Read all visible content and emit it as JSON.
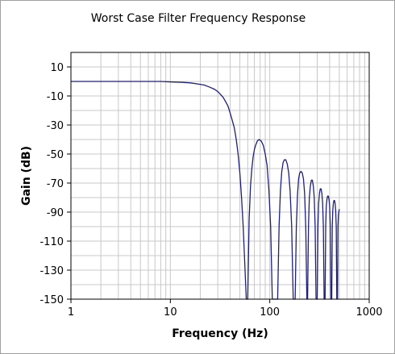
{
  "chart_data": {
    "type": "line",
    "title": "Worst Case Filter Frequency Response",
    "xlabel": "Frequency (Hz)",
    "ylabel": "Gain (dB)",
    "x_scale": "log",
    "xlim": [
      1,
      1000
    ],
    "ylim": [
      -150,
      20
    ],
    "x_ticks": [
      "1",
      "10",
      "100",
      "1000"
    ],
    "y_ticks": [
      "10",
      "-10",
      "-30",
      "-50",
      "-70",
      "-90",
      "-110",
      "-130",
      "-150"
    ],
    "grid": true,
    "legend": "none",
    "colors": {
      "series": "#1f1f7a",
      "grid": "#c8c8c8",
      "frame": "#000000"
    },
    "series": [
      {
        "x": [
          1,
          2,
          3,
          5,
          8,
          10,
          13,
          16,
          20,
          22,
          25,
          28,
          30,
          32,
          34,
          36,
          38,
          40,
          42,
          44,
          46,
          48,
          50,
          52,
          54,
          56,
          58,
          59.5,
          60,
          62,
          64,
          66,
          68,
          70,
          72,
          75,
          78,
          82,
          86,
          90,
          94,
          98,
          102,
          106,
          110,
          114,
          118,
          119.5,
          120,
          124,
          128,
          132,
          136,
          140,
          145,
          150,
          155,
          160,
          166,
          172,
          178,
          179.5,
          180,
          185,
          190,
          195,
          200,
          206,
          212,
          218,
          224,
          230,
          236,
          239.5,
          240,
          245,
          250,
          256,
          262,
          268,
          274,
          280,
          286,
          292,
          298,
          299.5,
          300,
          305,
          310,
          316,
          322,
          328,
          334,
          340,
          346,
          352,
          358,
          359.5,
          360,
          365,
          370,
          376,
          382,
          388,
          394,
          400,
          406,
          412,
          418,
          419.5,
          420,
          425,
          430,
          436,
          442,
          448,
          454,
          460,
          466,
          472,
          478,
          479.5,
          480,
          485,
          490,
          500
        ],
        "y": [
          0,
          0,
          0,
          0,
          0,
          -0.3,
          -0.6,
          -1,
          -2,
          -2.5,
          -4,
          -5.5,
          -7,
          -9,
          -11,
          -14,
          -17,
          -22,
          -27,
          -32,
          -40,
          -50,
          -63,
          -80,
          -100,
          -125,
          -150,
          -150,
          -150,
          -95,
          -72,
          -60,
          -52,
          -47,
          -44,
          -41,
          -40,
          -41,
          -44,
          -50,
          -58,
          -75,
          -100,
          -150,
          -150,
          -150,
          -150,
          -150,
          -150,
          -100,
          -75,
          -62,
          -56,
          -54,
          -54,
          -57,
          -63,
          -75,
          -100,
          -150,
          -150,
          -150,
          -150,
          -100,
          -78,
          -67,
          -63,
          -62,
          -63,
          -67,
          -77,
          -100,
          -150,
          -150,
          -150,
          -100,
          -80,
          -72,
          -68,
          -68,
          -72,
          -80,
          -100,
          -150,
          -150,
          -150,
          -150,
          -100,
          -84,
          -77,
          -74,
          -74,
          -77,
          -84,
          -100,
          -150,
          -150,
          -150,
          -150,
          -100,
          -86,
          -81,
          -79,
          -79,
          -81,
          -86,
          -100,
          -150,
          -150,
          -150,
          -150,
          -100,
          -89,
          -84,
          -82,
          -82,
          -84,
          -89,
          -100,
          -150,
          -150,
          -150,
          -150,
          -100,
          -92,
          -88
        ]
      }
    ]
  }
}
